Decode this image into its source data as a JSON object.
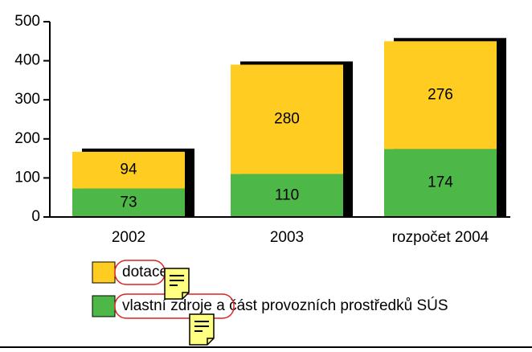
{
  "chart_data": {
    "type": "stacked_bar",
    "categories": [
      "2002",
      "2003",
      "rozpočet 2004"
    ],
    "series": [
      {
        "name": "dotace",
        "color": "#ffcc22",
        "values": [
          94,
          280,
          276
        ]
      },
      {
        "name": "vlastní zdroje a část provozních prostředků SÚS",
        "color": "#4db848",
        "values": [
          73,
          110,
          174
        ]
      }
    ],
    "ylim": [
      0,
      500
    ],
    "yticks": [
      0,
      100,
      200,
      300,
      400,
      500
    ],
    "grid": false,
    "shadow_color": "#000000"
  }
}
